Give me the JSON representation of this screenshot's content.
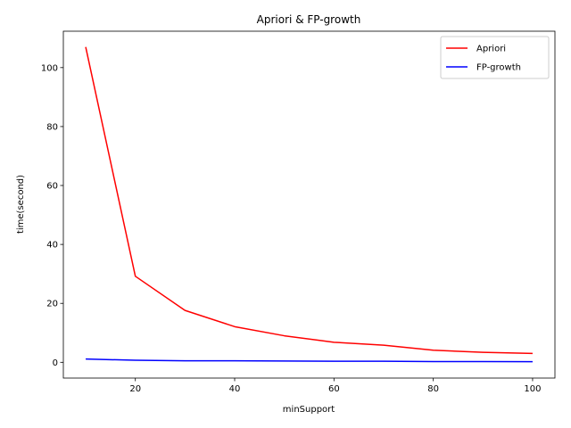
{
  "chart_data": {
    "type": "line",
    "title": "Apriori & FP-growth",
    "xlabel": "minSupport",
    "ylabel": "time(second)",
    "x": [
      10,
      20,
      30,
      40,
      50,
      60,
      70,
      80,
      90,
      100
    ],
    "series": [
      {
        "name": "Apriori",
        "color": "#ff0000",
        "values": [
          107.0,
          29.2,
          17.6,
          12.1,
          9.0,
          6.8,
          5.8,
          4.1,
          3.4,
          3.0
        ]
      },
      {
        "name": "FP-growth",
        "color": "#0000ff",
        "values": [
          1.1,
          0.7,
          0.5,
          0.5,
          0.45,
          0.35,
          0.35,
          0.25,
          0.25,
          0.2
        ]
      }
    ],
    "xlim": [
      5.5,
      104.5
    ],
    "ylim": [
      -5.35,
      112.35
    ],
    "xticks": [
      20,
      40,
      60,
      80,
      100
    ],
    "yticks": [
      0,
      20,
      40,
      60,
      80,
      100
    ],
    "grid": false,
    "legend_position": "top-right"
  }
}
